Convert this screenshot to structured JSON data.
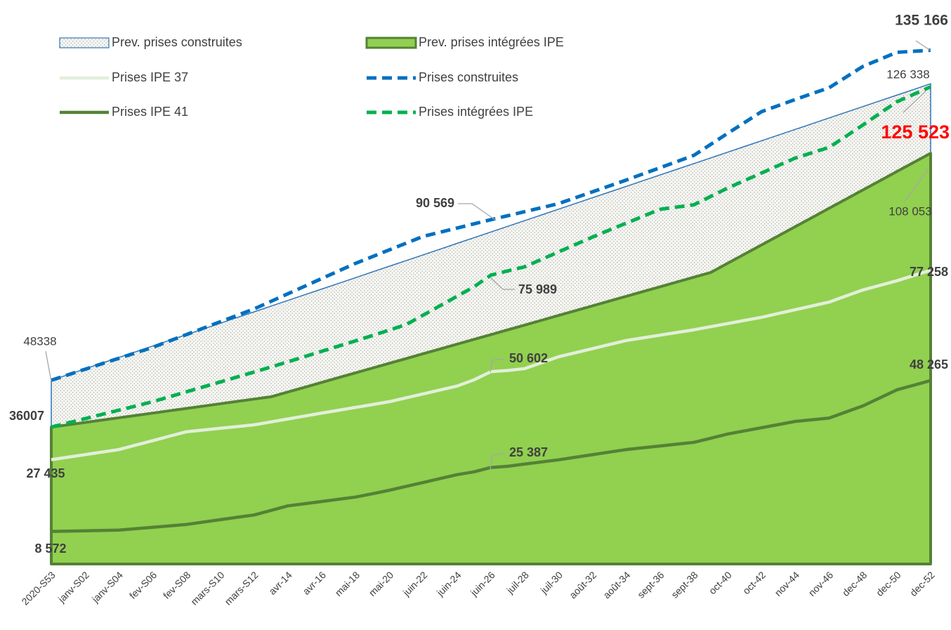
{
  "chart_data": {
    "type": "line",
    "categories": [
      "2020-S53",
      null,
      "janv-S02",
      null,
      "janv-S04",
      null,
      "fev-S06",
      null,
      "fev-S08",
      null,
      "mars-S10",
      null,
      "mars-S12",
      null,
      "avr-14",
      null,
      "avr-16",
      null,
      "mai-18",
      null,
      "mai-20",
      null,
      "juin-22",
      null,
      "juin-24",
      null,
      "juin-26",
      null,
      "juil-28",
      null,
      "juil-30",
      null,
      "août-32",
      null,
      "août-34",
      null,
      "sept-36",
      null,
      "sept-38",
      null,
      "oct-40",
      null,
      "oct-42",
      null,
      "nov-44",
      null,
      "nov-46",
      null,
      "dec-48",
      null,
      "dec-50",
      null,
      "dec-52"
    ],
    "ylim": [
      0,
      148000
    ],
    "series": [
      {
        "name": "Prev. prises construites",
        "style": "pattern-area",
        "color": "#2e75b6",
        "fill": "#d9d9d9",
        "values": [
          48338,
          49838,
          51338,
          52838,
          54338,
          55838,
          57338,
          58838,
          60338,
          61838,
          63338,
          64838,
          66338,
          67838,
          69338,
          70838,
          72338,
          73838,
          75338,
          76838,
          78338,
          79838,
          81338,
          82838,
          84338,
          85838,
          87338,
          88838,
          90338,
          91838,
          93338,
          94838,
          96338,
          97838,
          99338,
          100838,
          102338,
          103838,
          105338,
          106838,
          108338,
          109838,
          111338,
          112838,
          114338,
          115838,
          117338,
          118838,
          120338,
          121838,
          123338,
          124838,
          126338
        ],
        "value_labels": [
          "48338",
          null,
          null,
          null,
          null,
          null,
          null,
          null,
          null,
          null,
          null,
          null,
          null,
          null,
          null,
          null,
          null,
          null,
          null,
          null,
          null,
          null,
          null,
          null,
          null,
          null,
          null,
          null,
          null,
          null,
          null,
          null,
          null,
          null,
          null,
          null,
          null,
          null,
          null,
          null,
          null,
          null,
          null,
          null,
          null,
          null,
          null,
          null,
          null,
          null,
          null,
          null,
          "126 338"
        ]
      },
      {
        "name": "Prev. prises intégrées IPE",
        "style": "area",
        "color": "#548235",
        "fill": "#92d050",
        "values": [
          36007,
          36622,
          37237,
          37852,
          38466,
          39081,
          39696,
          40311,
          40926,
          41541,
          42156,
          42770,
          43385,
          44000,
          45258,
          46515,
          47773,
          49031,
          50288,
          51546,
          52804,
          54062,
          55319,
          56577,
          57835,
          59092,
          60350,
          61608,
          62865,
          64123,
          65381,
          66638,
          67896,
          69154,
          70412,
          71669,
          72927,
          74185,
          75442,
          76700,
          79112,
          81524,
          83935,
          86347,
          88759,
          91171,
          93583,
          95994,
          98406,
          100818,
          103230,
          105641,
          108053
        ],
        "value_labels": [
          "36007",
          null,
          null,
          null,
          null,
          null,
          null,
          null,
          null,
          null,
          null,
          null,
          null,
          null,
          null,
          null,
          null,
          null,
          null,
          null,
          null,
          null,
          null,
          null,
          null,
          null,
          null,
          null,
          null,
          null,
          null,
          null,
          null,
          null,
          null,
          null,
          null,
          null,
          null,
          null,
          null,
          null,
          null,
          null,
          null,
          null,
          null,
          null,
          null,
          null,
          null,
          null,
          "108 053"
        ]
      },
      {
        "name": "Prises IPE 37",
        "style": "line",
        "color": "#e2efd9",
        "values": [
          27435,
          28100,
          28770,
          29430,
          30100,
          31280,
          32450,
          33630,
          34800,
          35250,
          35700,
          36150,
          36600,
          37380,
          38150,
          38930,
          39700,
          40450,
          41200,
          41950,
          42700,
          43730,
          44750,
          45780,
          46800,
          48450,
          50602,
          50900,
          51400,
          52950,
          54500,
          55580,
          56650,
          57730,
          58800,
          59500,
          60200,
          60900,
          61600,
          62430,
          63250,
          64080,
          64900,
          65900,
          66900,
          67900,
          68900,
          70500,
          72100,
          73300,
          74500,
          75880,
          77258
        ],
        "value_labels": [
          "27 435",
          null,
          null,
          null,
          null,
          null,
          null,
          null,
          null,
          null,
          null,
          null,
          null,
          null,
          null,
          null,
          null,
          null,
          null,
          null,
          null,
          null,
          null,
          null,
          null,
          null,
          "50 602",
          null,
          null,
          null,
          null,
          null,
          null,
          null,
          null,
          null,
          null,
          null,
          null,
          null,
          null,
          null,
          null,
          null,
          null,
          null,
          null,
          null,
          null,
          null,
          null,
          null,
          "77 258"
        ]
      },
      {
        "name": "Prises construites",
        "style": "dashed",
        "color": "#0070c0",
        "values": [
          48338,
          49780,
          51230,
          52670,
          54110,
          55560,
          57000,
          58680,
          60370,
          62050,
          63730,
          65420,
          67100,
          69100,
          71100,
          73100,
          75100,
          77100,
          79100,
          80880,
          82650,
          84430,
          86200,
          87290,
          88380,
          89480,
          90569,
          91630,
          92690,
          93740,
          94800,
          96350,
          97900,
          99450,
          101000,
          102630,
          104250,
          105880,
          107500,
          110400,
          113300,
          116150,
          119000,
          120600,
          122200,
          123750,
          125300,
          128100,
          130900,
          132750,
          134600,
          134880,
          135166
        ],
        "value_labels": [
          null,
          null,
          null,
          null,
          null,
          null,
          null,
          null,
          null,
          null,
          null,
          null,
          null,
          null,
          null,
          null,
          null,
          null,
          null,
          null,
          null,
          null,
          null,
          null,
          null,
          null,
          "90 569",
          null,
          null,
          null,
          null,
          null,
          null,
          null,
          null,
          null,
          null,
          null,
          null,
          null,
          null,
          null,
          null,
          null,
          null,
          null,
          null,
          null,
          null,
          null,
          null,
          null,
          "135 166"
        ]
      },
      {
        "name": "Prises IPE 41",
        "style": "line",
        "color": "#548235",
        "values": [
          8572,
          8650,
          8730,
          8820,
          8900,
          9280,
          9650,
          10030,
          10400,
          11030,
          11650,
          12280,
          12900,
          14100,
          15300,
          15880,
          16450,
          17030,
          17600,
          18500,
          19400,
          20430,
          21450,
          22480,
          23500,
          24250,
          25387,
          25700,
          26300,
          26850,
          27400,
          28080,
          28750,
          29430,
          30100,
          30580,
          31050,
          31530,
          32000,
          33100,
          34200,
          35030,
          35850,
          36680,
          37500,
          37950,
          38400,
          40000,
          41600,
          43700,
          45800,
          47030,
          48265
        ],
        "value_labels": [
          "8 572",
          null,
          null,
          null,
          null,
          null,
          null,
          null,
          null,
          null,
          null,
          null,
          null,
          null,
          null,
          null,
          null,
          null,
          null,
          null,
          null,
          null,
          null,
          null,
          null,
          null,
          "25 387",
          null,
          null,
          null,
          null,
          null,
          null,
          null,
          null,
          null,
          null,
          null,
          null,
          null,
          null,
          null,
          null,
          null,
          null,
          null,
          null,
          null,
          null,
          null,
          null,
          null,
          "48 265"
        ]
      },
      {
        "name": "Prises intégrées IPE",
        "style": "dashed",
        "color": "#00b050",
        "values": [
          36007,
          37122,
          38237,
          39352,
          40467,
          41582,
          42700,
          44000,
          45300,
          46600,
          47900,
          49200,
          50500,
          51850,
          53200,
          54580,
          55960,
          57340,
          58720,
          60100,
          61550,
          63000,
          65480,
          67960,
          70440,
          72920,
          75989,
          77100,
          78200,
          80150,
          82100,
          84050,
          86000,
          87830,
          89650,
          91480,
          93300,
          93900,
          94500,
          96700,
          98900,
          100880,
          102850,
          104830,
          106800,
          108200,
          109600,
          112550,
          115500,
          118550,
          121600,
          123560,
          125523
        ],
        "value_labels": [
          null,
          null,
          null,
          null,
          null,
          null,
          null,
          null,
          null,
          null,
          null,
          null,
          null,
          null,
          null,
          null,
          null,
          null,
          null,
          null,
          null,
          null,
          null,
          null,
          null,
          null,
          "75 989",
          null,
          null,
          null,
          null,
          null,
          null,
          null,
          null,
          null,
          null,
          null,
          null,
          null,
          null,
          null,
          null,
          null,
          null,
          null,
          null,
          null,
          null,
          null,
          null,
          null,
          "125 523"
        ]
      }
    ]
  }
}
